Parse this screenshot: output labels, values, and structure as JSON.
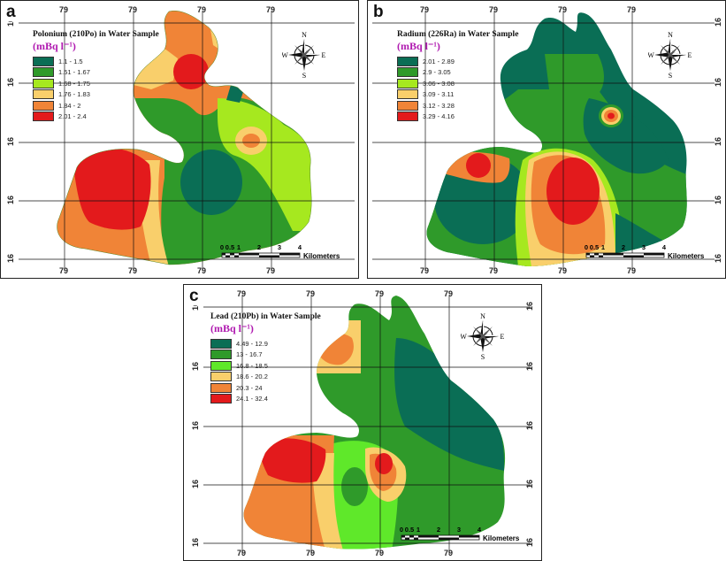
{
  "panels": {
    "a": {
      "label": "a",
      "legend_title": "Polonium (210Po) in Water Sample",
      "unit": "(mBq l⁻¹)",
      "classes": [
        {
          "range": "1.1 - 1.5",
          "color": "#0a6e55"
        },
        {
          "range": "1.51 - 1.67",
          "color": "#2f9a2a"
        },
        {
          "range": "1.68 - 1.75",
          "color": "#a6e81f"
        },
        {
          "range": "1.76 - 1.83",
          "color": "#f9cf6b"
        },
        {
          "range": "1.84 - 2",
          "color": "#f08437"
        },
        {
          "range": "2.01 - 2.4",
          "color": "#e31a1c"
        }
      ],
      "top_ticks": [
        "79",
        "79",
        "79",
        "79"
      ],
      "bottom_ticks": [
        "79",
        "79",
        "79",
        "79"
      ],
      "left_ticks": [
        "16",
        "16",
        "16",
        "16",
        "16"
      ],
      "right_ticks": []
    },
    "b": {
      "label": "b",
      "legend_title": "Radium (226Ra) in Water Sample",
      "unit": "(mBq l⁻¹)",
      "classes": [
        {
          "range": "2.01 - 2.89",
          "color": "#0a6e55"
        },
        {
          "range": "2.9 - 3.05",
          "color": "#2f9a2a"
        },
        {
          "range": "3.06 - 3.08",
          "color": "#a6e81f"
        },
        {
          "range": "3.09 - 3.11",
          "color": "#f9cf6b"
        },
        {
          "range": "3.12 - 3.28",
          "color": "#f08437"
        },
        {
          "range": "3.29 - 4.16",
          "color": "#e31a1c"
        }
      ],
      "top_ticks": [
        "79",
        "79",
        "79",
        "79"
      ],
      "bottom_ticks": [
        "79",
        "79",
        "79",
        "79"
      ],
      "left_ticks": [],
      "right_ticks": [
        "16",
        "16",
        "16",
        "16",
        "16"
      ]
    },
    "c": {
      "label": "c",
      "legend_title": "Lead (210Pb) in Water Sample",
      "unit": "(mBq l⁻¹)",
      "classes": [
        {
          "range": "4.49 - 12.9",
          "color": "#0a6e55"
        },
        {
          "range": "13 - 16.7",
          "color": "#2f9a2a"
        },
        {
          "range": "16.8 - 18.5",
          "color": "#5fe82a"
        },
        {
          "range": "18.6 - 20.2",
          "color": "#f9cf6b"
        },
        {
          "range": "20.3 - 24",
          "color": "#f08437"
        },
        {
          "range": "24.1 - 32.4",
          "color": "#e31a1c"
        }
      ],
      "top_ticks": [
        "79",
        "79",
        "79",
        "79"
      ],
      "bottom_ticks": [
        "79",
        "79",
        "79",
        "79"
      ],
      "left_ticks": [
        "16",
        "16",
        "16",
        "16",
        "16"
      ],
      "right_ticks": [
        "16",
        "16",
        "16",
        "16",
        "16"
      ]
    }
  },
  "compass": {
    "n": "N",
    "s": "S",
    "e": "E",
    "w": "W"
  },
  "scale": {
    "labels": [
      "0",
      "0.5",
      "1",
      "2",
      "3",
      "4"
    ],
    "unit": "Kilometers"
  }
}
